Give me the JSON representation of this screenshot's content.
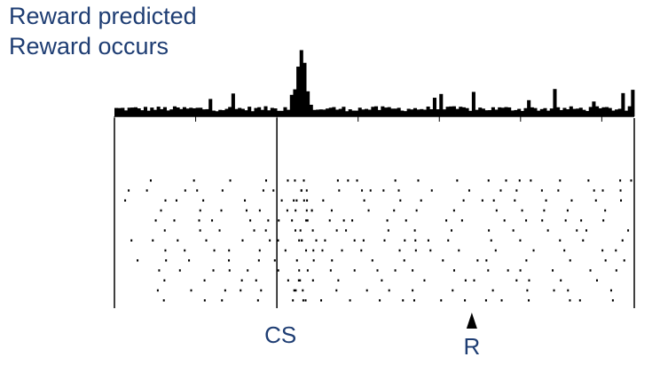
{
  "titles": {
    "line1": "Reward predicted",
    "line2": "Reward occurs"
  },
  "chart_data": {
    "type": "raster-histogram",
    "title": "Reward predicted / Reward occurs",
    "events": [
      {
        "label": "CS",
        "t": 0.0,
        "style": "line"
      },
      {
        "label": "R",
        "t": 1.2,
        "style": "arrow"
      }
    ],
    "time_range": [
      -1.0,
      2.2
    ],
    "trials": 13,
    "histogram": {
      "bin_width": 0.02,
      "baseline_counts": [
        3,
        6
      ],
      "peak": {
        "t": 0.15,
        "max_count": 40
      }
    },
    "colors": {
      "data": "#000000",
      "labels": "#1e3d73"
    }
  }
}
